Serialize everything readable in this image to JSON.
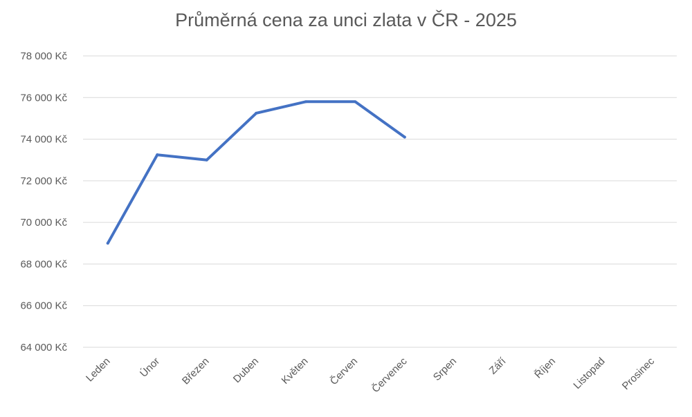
{
  "chart_data": {
    "type": "line",
    "title": "Průměrná cena za unci zlata v ČR - 2025",
    "xlabel": "",
    "ylabel": "",
    "categories": [
      "Leden",
      "Únor",
      "Březen",
      "Duben",
      "Květen",
      "Červen",
      "Červenec",
      "Srpen",
      "Září",
      "Říjen",
      "Listopad",
      "Prosinec"
    ],
    "series": [
      {
        "values": [
          69000,
          73250,
          73000,
          75250,
          75800,
          75800,
          74100,
          null,
          null,
          null,
          null,
          null
        ],
        "color": "#4472c4"
      }
    ],
    "ylim": [
      64000,
      78000
    ],
    "y_ticks": [
      64000,
      66000,
      68000,
      70000,
      72000,
      74000,
      76000,
      78000
    ],
    "y_tick_labels": [
      "64 000 Kč",
      "66 000 Kč",
      "68 000 Kč",
      "70 000 Kč",
      "72 000 Kč",
      "74 000 Kč",
      "76 000 Kč",
      "78 000 Kč"
    ],
    "grid": true,
    "legend": "none",
    "colors": {
      "gridline": "#d9d9d9",
      "text": "#595959"
    }
  }
}
